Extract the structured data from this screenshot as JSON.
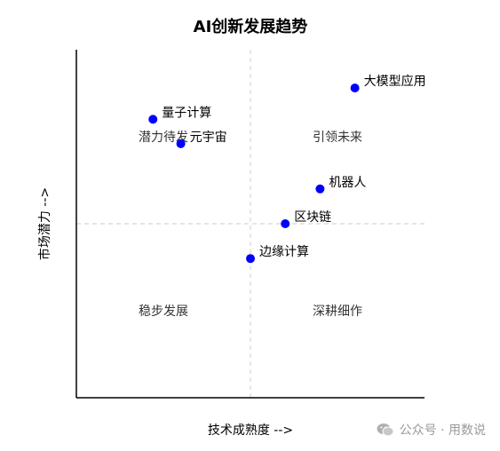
{
  "chart_data": {
    "type": "scatter",
    "title": "AI创新发展趋势",
    "xlabel": "技术成熟度 -->",
    "ylabel": "市场潜力 -->",
    "xlim": [
      0,
      10
    ],
    "ylim": [
      0,
      10
    ],
    "grid": false,
    "dividers": {
      "x": 5,
      "y": 5
    },
    "points": [
      {
        "label": "大模型应用",
        "x": 8.0,
        "y": 8.9
      },
      {
        "label": "量子计算",
        "x": 2.2,
        "y": 8.0
      },
      {
        "label": "元宇宙",
        "x": 3.0,
        "y": 7.3
      },
      {
        "label": "机器人",
        "x": 7.0,
        "y": 6.0
      },
      {
        "label": "区块链",
        "x": 6.0,
        "y": 5.0
      },
      {
        "label": "边缘计算",
        "x": 5.0,
        "y": 4.0
      }
    ],
    "quadrants": [
      {
        "label": "潜力待发",
        "position": "top-left"
      },
      {
        "label": "引领未来",
        "position": "top-right"
      },
      {
        "label": "稳步发展",
        "position": "bottom-left"
      },
      {
        "label": "深耕细作",
        "position": "bottom-right"
      }
    ],
    "point_color": "#0000ff",
    "divider_color": "#cccccc"
  },
  "watermark": {
    "text": "公众号 · 用数说",
    "icon": "wechat-icon"
  }
}
